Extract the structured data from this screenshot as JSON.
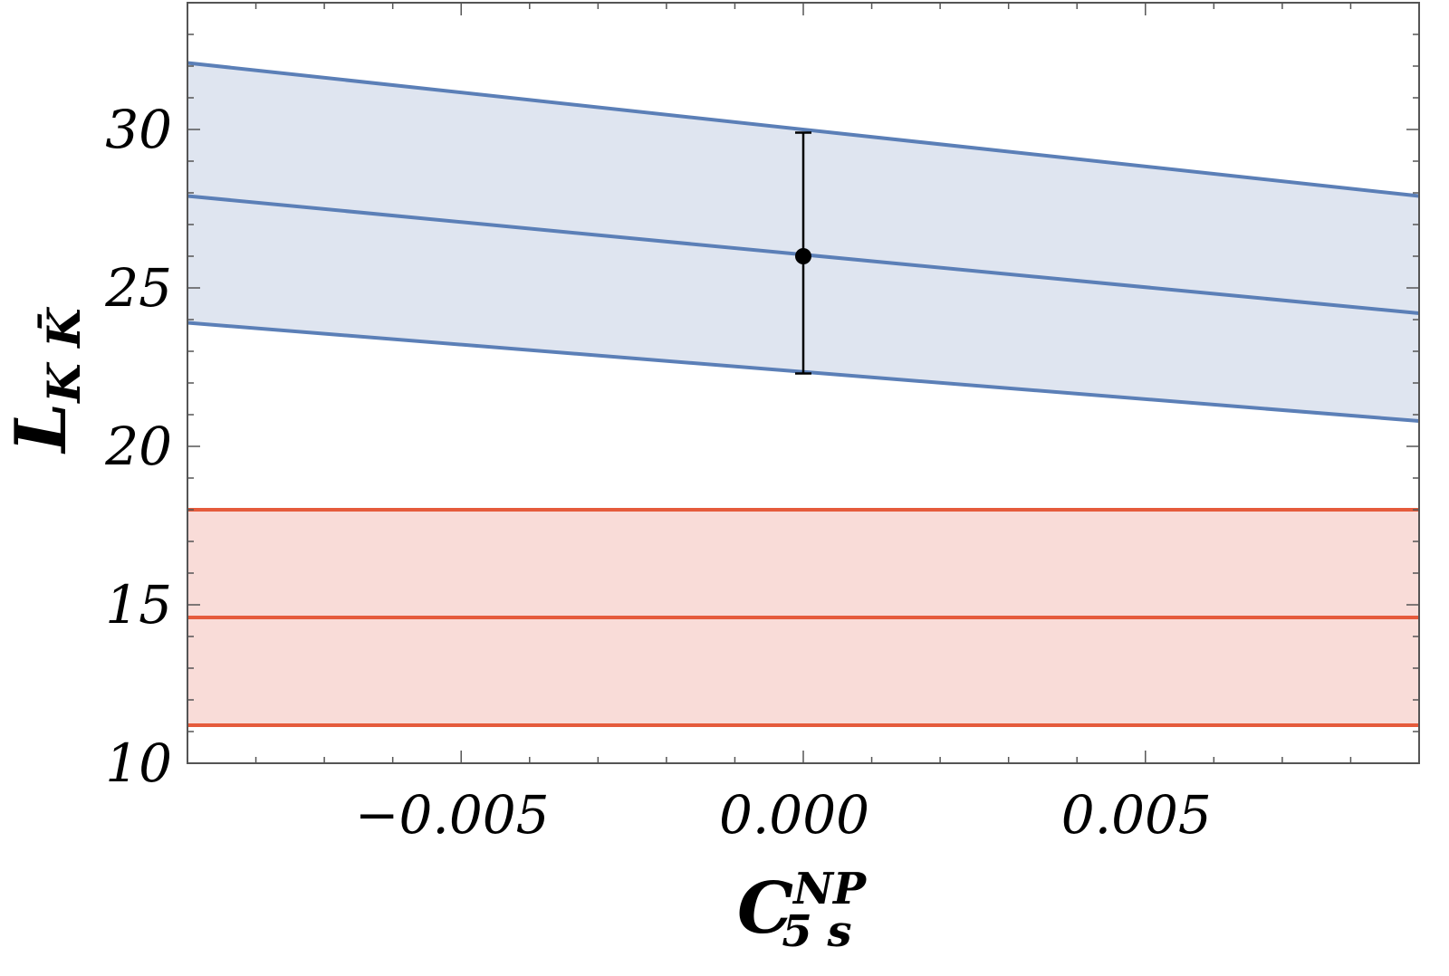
{
  "chart_data": {
    "type": "line",
    "xlabel": {
      "base": "C",
      "sub": "5 s",
      "sup": "NP"
    },
    "ylabel": {
      "base": "L",
      "sub": "K K̄"
    },
    "xlim": [
      -0.009,
      0.009
    ],
    "ylim": [
      10,
      34
    ],
    "x_ticks": [
      {
        "value": -0.005,
        "label": "−0.005"
      },
      {
        "value": 0.0,
        "label": "0.000"
      },
      {
        "value": 0.005,
        "label": "0.005"
      }
    ],
    "y_ticks": [
      {
        "value": 10,
        "label": "10"
      },
      {
        "value": 15,
        "label": "15"
      },
      {
        "value": 20,
        "label": "20"
      },
      {
        "value": 25,
        "label": "25"
      },
      {
        "value": 30,
        "label": "30"
      }
    ],
    "grid": false,
    "series": [
      {
        "color": "#5b7fb7",
        "band_fill": "#dfe5f0",
        "x": [
          -0.009,
          0.009
        ],
        "upper": [
          32.1,
          27.9
        ],
        "central": [
          27.9,
          24.2
        ],
        "lower": [
          23.9,
          20.8
        ]
      },
      {
        "color": "#e55b3c",
        "band_fill": "#f9dcd8",
        "x": [
          -0.009,
          0.009
        ],
        "upper": [
          18.0,
          18.0
        ],
        "central": [
          14.6,
          14.6
        ],
        "lower": [
          11.2,
          11.2
        ]
      }
    ],
    "points": [
      {
        "x": 0.0,
        "y": 26.0,
        "err_low": 22.3,
        "err_high": 29.9,
        "color": "#000000"
      }
    ]
  }
}
